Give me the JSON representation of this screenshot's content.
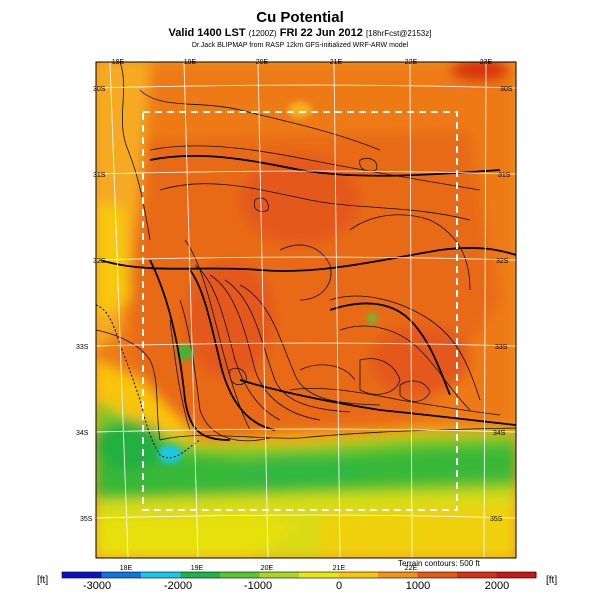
{
  "title": "Cu Potential",
  "subtitle": "Valid 1400 LST",
  "subtitle_small": "(1200Z)",
  "subtitle_date": "FRI 22 Jun 2012",
  "subtitle_forecast": "[18hrFcst@2153z]",
  "caption": "Dr.Jack BLIPMAP from RASP 12km GFS-initialized WRF-ARW model",
  "terrain_note": "Terrain contours: 500 ft",
  "colorbar": {
    "unit_left": "[ft]",
    "unit_right": "[ft]",
    "tick_labels": [
      "-3000",
      "-2000",
      "-1000",
      "0",
      "1000",
      "2000"
    ],
    "colors": [
      "#1010c8",
      "#0a78e0",
      "#18c8e8",
      "#18b848",
      "#58c830",
      "#a8d820",
      "#e8e810",
      "#f8c808",
      "#f89010",
      "#e85a10",
      "#d83010",
      "#c81818"
    ]
  },
  "map": {
    "lon_labels_top": [
      "18E",
      "19E",
      "20E",
      "21E",
      "22E",
      "23E"
    ],
    "lon_labels_bottom": [
      "18E",
      "19E",
      "20E",
      "21E",
      "22E"
    ],
    "lat_labels_left": [
      "30S",
      "31S",
      "32S",
      "33S",
      "34S",
      "35S"
    ],
    "lat_labels_right": [
      "30S",
      "31S",
      "32S",
      "33S",
      "34S",
      "35S"
    ]
  }
}
